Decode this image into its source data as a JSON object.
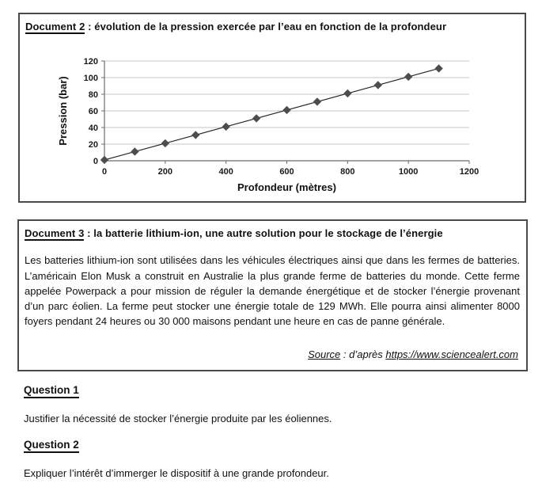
{
  "document2": {
    "label": "Document 2",
    "title_rest": " : évolution de la pression exercée par l’eau en fonction de la profondeur"
  },
  "chart_data": {
    "type": "line",
    "x": [
      0,
      100,
      200,
      300,
      400,
      500,
      600,
      700,
      800,
      900,
      1000,
      1100
    ],
    "y": [
      1,
      11,
      21,
      31,
      41,
      51,
      61,
      71,
      81,
      91,
      101,
      111
    ],
    "title": "",
    "xlabel": "Profondeur (mètres)",
    "ylabel": "Pression (bar)",
    "xlim": [
      0,
      1200
    ],
    "ylim": [
      0,
      120
    ],
    "x_ticks": [
      0,
      200,
      400,
      600,
      800,
      1000,
      1200
    ],
    "y_ticks": [
      0,
      20,
      40,
      60,
      80,
      100,
      120
    ],
    "grid": "horizontal",
    "legend": "none",
    "marker": "diamond",
    "marker_color": "#4d4d4d",
    "line_color": "#262626",
    "gridline_color": "#c6c6c6",
    "axis_color": "#6b6b6b"
  },
  "document3": {
    "label": "Document 3",
    "title_rest": " : la batterie lithium-ion, une autre solution pour le stockage de l’énergie",
    "body": "Les batteries lithium-ion sont utilisées dans les véhicules électriques ainsi que dans les fermes de batteries. L’américain Elon Musk a construit en Australie la plus grande ferme de batteries du monde. Cette ferme appelée Powerpack a pour mission de réguler la demande énergétique et de stocker l’énergie provenant d’un parc éolien. La ferme peut stocker une énergie totale de 129 MWh. Elle pourra ainsi alimenter 8000 foyers pendant 24 heures ou 30 000 maisons pendant une heure en cas de panne générale.",
    "source_label": "Source",
    "source_middle": " : d’après ",
    "source_url": "https://www.sciencealert.com"
  },
  "questions": {
    "q1": {
      "heading": "Question 1",
      "text": "Justifier la nécessité de stocker l’énergie produite par les éoliennes."
    },
    "q2": {
      "heading": "Question 2",
      "text": "Expliquer l’intérêt d’immerger le dispositif à une grande profondeur."
    }
  }
}
